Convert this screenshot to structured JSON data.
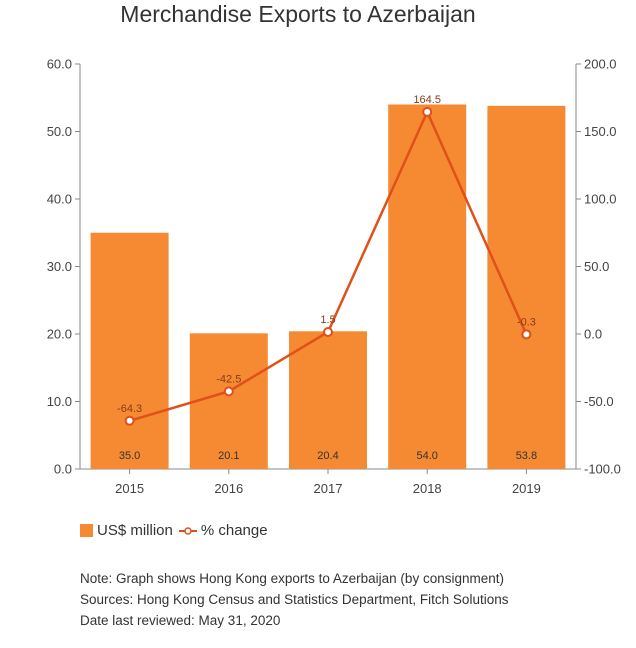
{
  "chart_data": {
    "type": "bar",
    "title": "Merchandise Exports to Azerbaijan",
    "categories": [
      "2015",
      "2016",
      "2017",
      "2018",
      "2019"
    ],
    "series": [
      {
        "name": "US$ million",
        "type": "bar",
        "axis": "left",
        "values": [
          35.0,
          20.1,
          20.4,
          54.0,
          53.8
        ],
        "labels": [
          "35.0",
          "20.1",
          "20.4",
          "54.0",
          "53.8"
        ],
        "color": "#f58a33"
      },
      {
        "name": "% change",
        "type": "line",
        "axis": "right",
        "values": [
          -64.3,
          -42.5,
          1.5,
          164.5,
          -0.3
        ],
        "labels": [
          "-64.3",
          "-42.5",
          "1.5",
          "164.5",
          "-0.3"
        ],
        "color": "#e0501a"
      }
    ],
    "y_left": {
      "range": [
        0,
        60
      ],
      "ticks": [
        "0.0",
        "10.0",
        "20.0",
        "30.0",
        "40.0",
        "50.0",
        "60.0"
      ],
      "tick_values": [
        0,
        10,
        20,
        30,
        40,
        50,
        60
      ]
    },
    "y_right": {
      "range": [
        -100,
        200
      ],
      "ticks": [
        "-100.0",
        "-50.0",
        "0.0",
        "50.0",
        "100.0",
        "150.0",
        "200.0"
      ],
      "tick_values": [
        -100,
        -50,
        0,
        50,
        100,
        150,
        200
      ]
    },
    "grid": false,
    "legend_position": "bottom-left"
  },
  "notes": [
    "Note: Graph shows Hong Kong exports to Azerbaijan (by consignment)",
    "Sources: Hong Kong Census and Statistics Department, Fitch Solutions",
    "Date last reviewed: May 31, 2020"
  ],
  "colors": {
    "bar": "#f58a33",
    "line": "#e0501a",
    "axis": "#888888",
    "text": "#333333"
  }
}
